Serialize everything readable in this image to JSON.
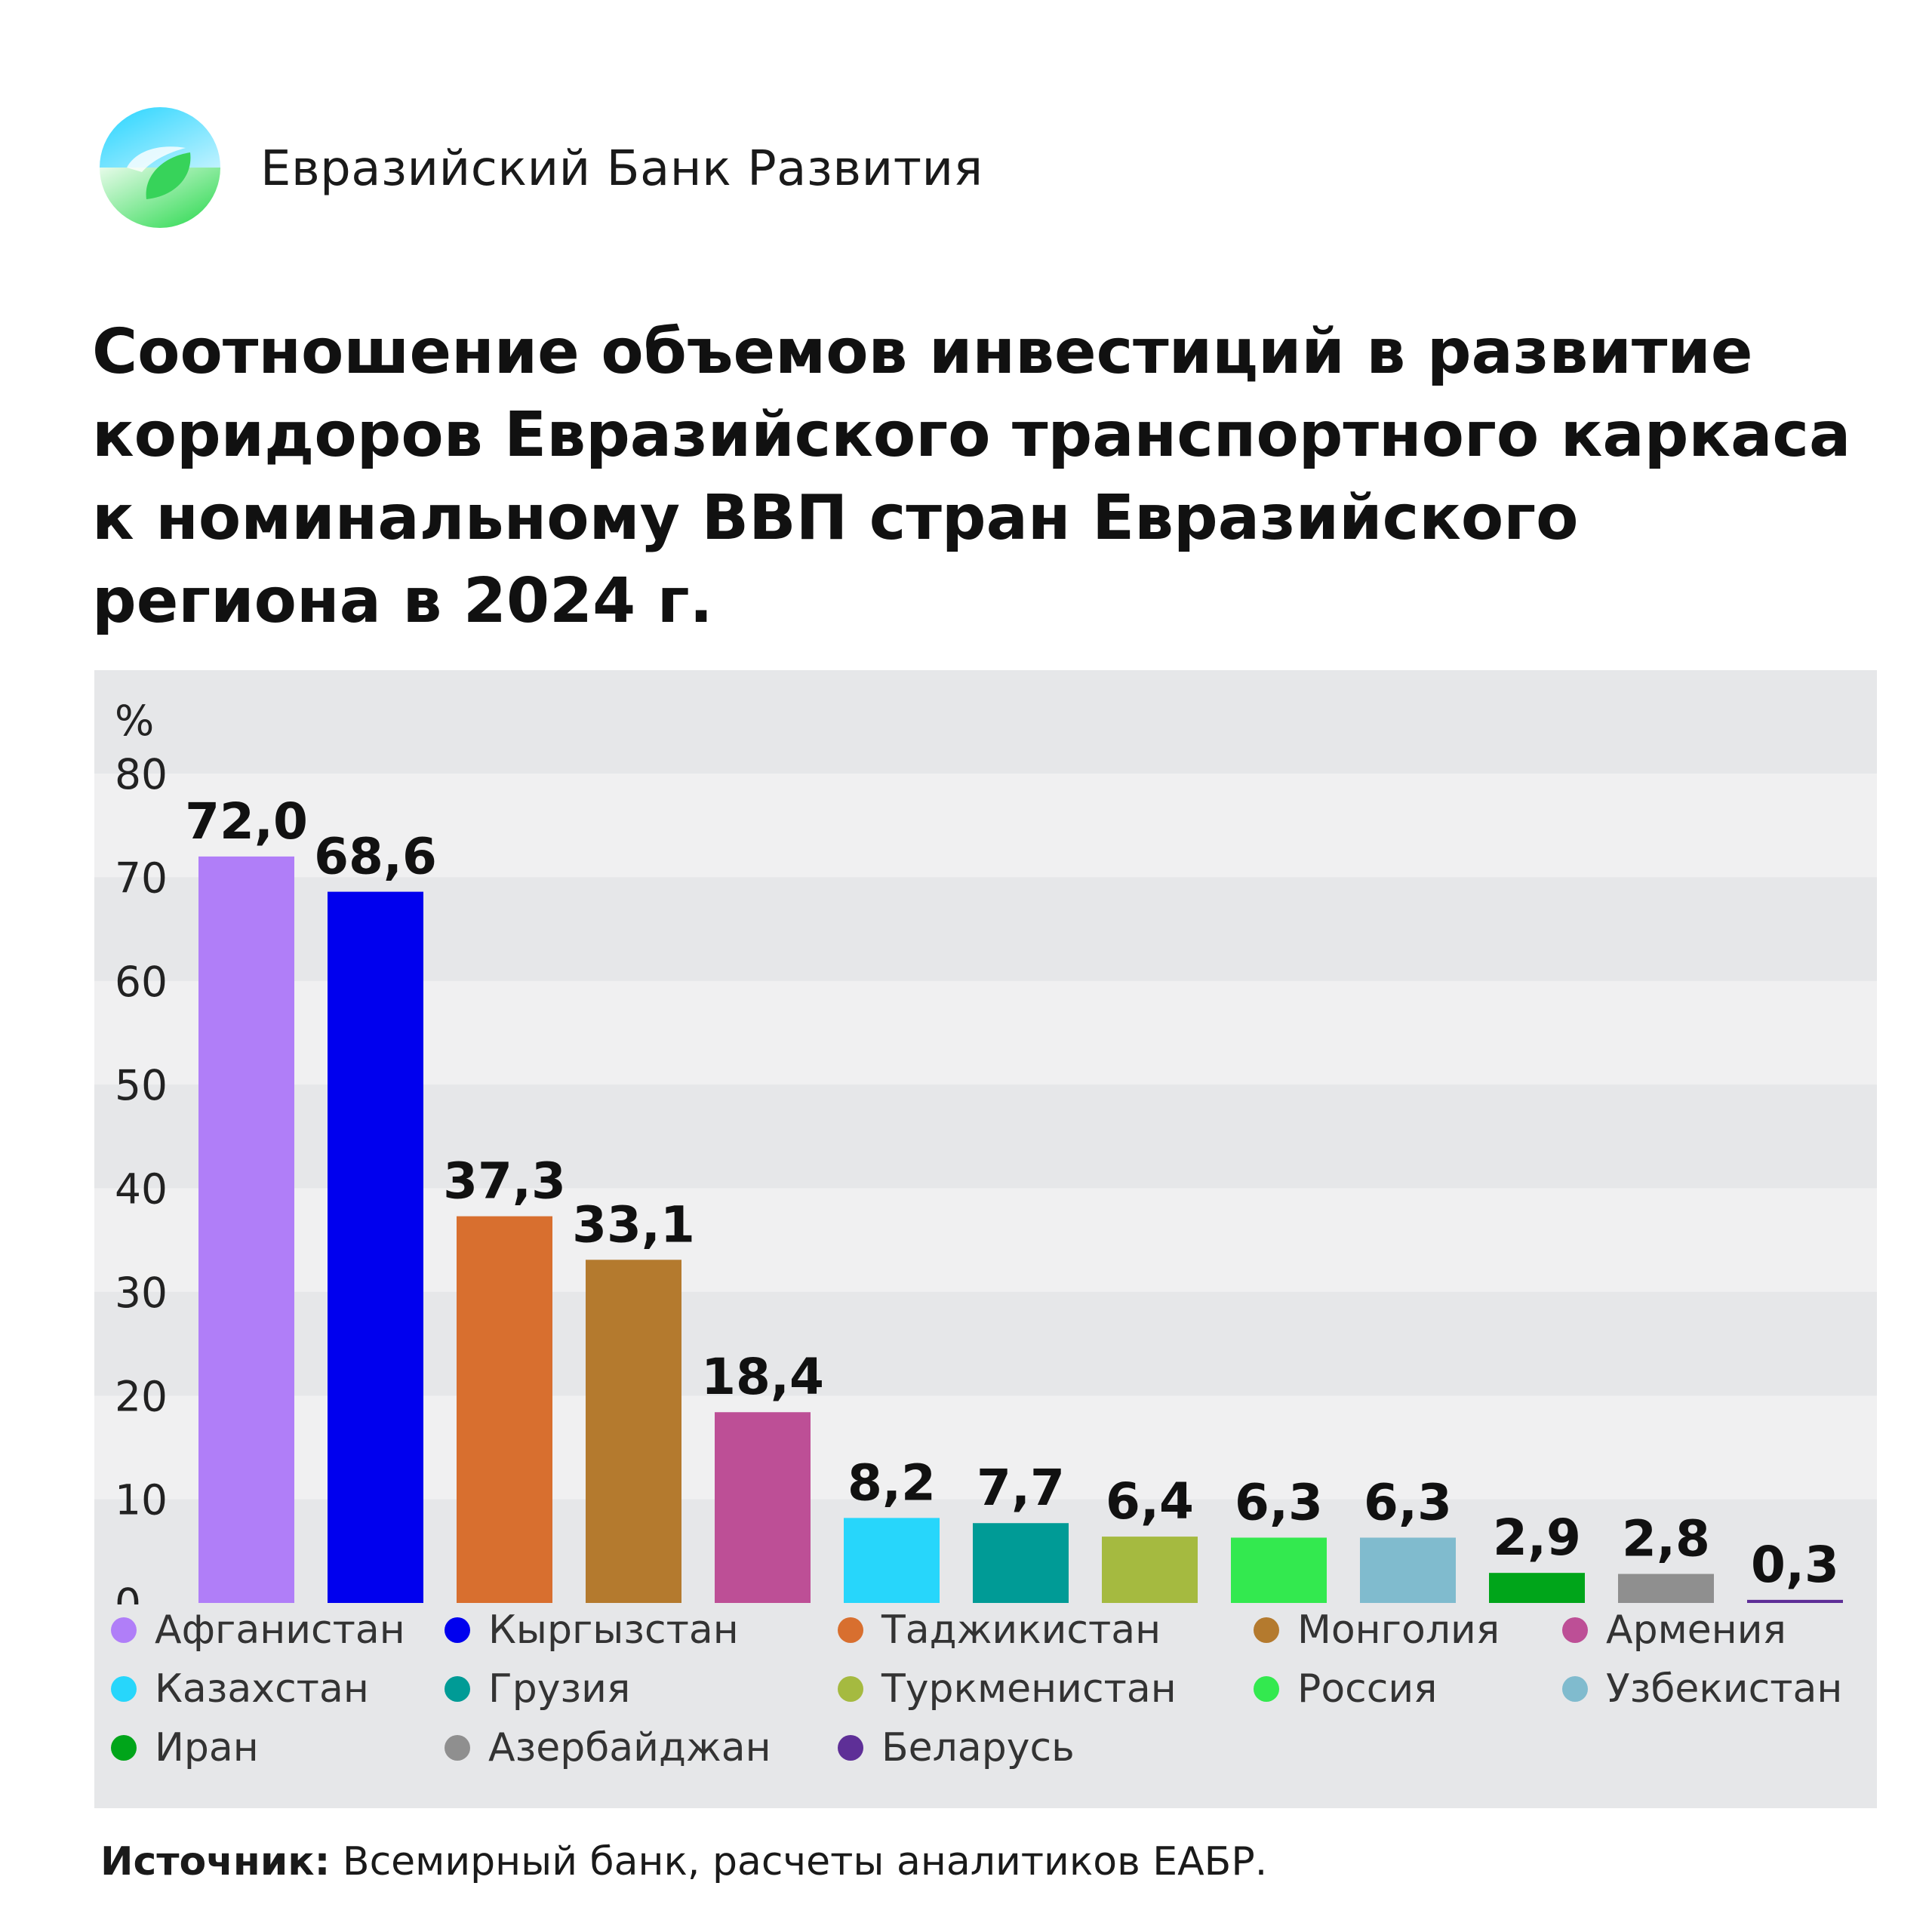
{
  "brand": {
    "name": "Евразийский Банк Развития"
  },
  "title_lines": [
    "Соотношение объемов инвестиций в развитие",
    "коридоров Евразийского транспортного каркаса",
    "к номинальному ВВП стран Евразийского",
    "региона в 2024 г."
  ],
  "source": {
    "label": "Источник:",
    "text": " Всемирный банк, расчеты аналитиков ЕАБР."
  },
  "chart_data": {
    "type": "bar",
    "ylabel": "%",
    "ylim": [
      0,
      80
    ],
    "yticks": [
      "0",
      "10",
      "20",
      "30",
      "40",
      "50",
      "60",
      "70",
      "80"
    ],
    "grid": "alternating horizontal bands",
    "legend_position": "bottom",
    "categories": [
      "Афганистан",
      "Кыргызстан",
      "Таджикистан",
      "Монголия",
      "Армения",
      "Казахстан",
      "Грузия",
      "Туркменистан",
      "Россия",
      "Узбекистан",
      "Иран",
      "Азербайджан",
      "Беларусь"
    ],
    "values": [
      72.0,
      68.6,
      37.3,
      33.1,
      18.4,
      8.2,
      7.7,
      6.4,
      6.3,
      6.3,
      2.9,
      2.8,
      0.3
    ],
    "value_labels": [
      "72,0",
      "68,6",
      "37,3",
      "33,1",
      "18,4",
      "8,2",
      "7,7",
      "6,4",
      "6,3",
      "6,3",
      "2,9",
      "2,8",
      "0,3"
    ],
    "colors": [
      "#b07ef8",
      "#0000ee",
      "#d86f2f",
      "#b47a2e",
      "#bd4f96",
      "#27d6fb",
      "#009b96",
      "#a5ba40",
      "#33e94f",
      "#80bbce",
      "#00a51a",
      "#8f8f8f",
      "#5e2f97"
    ]
  }
}
